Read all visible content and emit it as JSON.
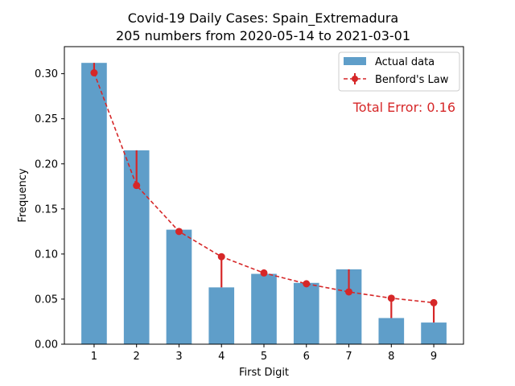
{
  "chart_data": {
    "type": "bar",
    "title_line1": "Covid-19 Daily Cases: Spain_Extremadura",
    "title_line2": "205 numbers from 2020-05-14 to 2021-03-01",
    "xlabel": "First Digit",
    "ylabel": "Frequency",
    "categories": [
      "1",
      "2",
      "3",
      "4",
      "5",
      "6",
      "7",
      "8",
      "9"
    ],
    "x": [
      1,
      2,
      3,
      4,
      5,
      6,
      7,
      8,
      9
    ],
    "ylim": [
      0,
      0.33
    ],
    "yticks": [
      0.0,
      0.05,
      0.1,
      0.15,
      0.2,
      0.25,
      0.3
    ],
    "ytick_labels": [
      "0.00",
      "0.05",
      "0.10",
      "0.15",
      "0.20",
      "0.25",
      "0.30"
    ],
    "series": [
      {
        "name": "Actual data",
        "type": "bar",
        "color": "#5f9ec9",
        "values": [
          0.312,
          0.215,
          0.127,
          0.063,
          0.078,
          0.068,
          0.083,
          0.029,
          0.024
        ]
      },
      {
        "name": "Benford's Law",
        "type": "line",
        "color": "#d62728",
        "values": [
          0.301,
          0.176,
          0.125,
          0.097,
          0.079,
          0.067,
          0.058,
          0.051,
          0.046
        ]
      }
    ],
    "annotation": "Total Error: 0.16",
    "annotation_color": "#d62728",
    "legend_position": "top-right",
    "grid": false
  }
}
